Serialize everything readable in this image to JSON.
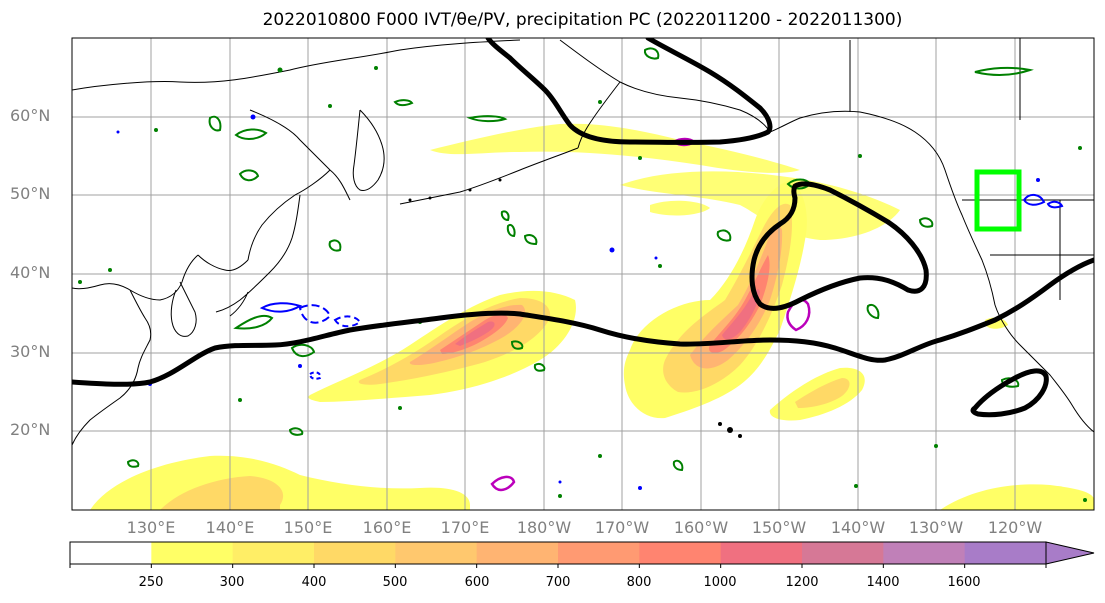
{
  "figure": {
    "title": "2022010800 F000 IVT/θe/PV, precipitation PC (2022011200 - 2022011300)"
  },
  "map": {
    "lat_labels": [
      "60°N",
      "50°N",
      "40°N",
      "30°N",
      "20°N"
    ],
    "lon_labels": [
      "130°E",
      "140°E",
      "150°E",
      "160°E",
      "170°E",
      "180°W",
      "170°W",
      "160°W",
      "150°W",
      "140°W",
      "130°W",
      "120°W"
    ],
    "region_box_color": "#00ff00",
    "fill_palette": [
      "#ffff66",
      "#ffee66",
      "#ffd966",
      "#ffc86e",
      "#ffb472",
      "#ff9a72",
      "#ff8470",
      "#f07080",
      "#d67896",
      "#c080b8",
      "#a87cc8"
    ]
  },
  "colorbar": {
    "ticks": [
      "250",
      "300",
      "400",
      "500",
      "600",
      "700",
      "800",
      "1000",
      "1200",
      "1400",
      "1600"
    ],
    "colors": [
      "#ffffff",
      "#ffff66",
      "#ffee66",
      "#ffd966",
      "#ffc86e",
      "#ffb472",
      "#ff9a72",
      "#ff8470",
      "#f07080",
      "#d67896",
      "#c080b8",
      "#a87cc8"
    ]
  }
}
